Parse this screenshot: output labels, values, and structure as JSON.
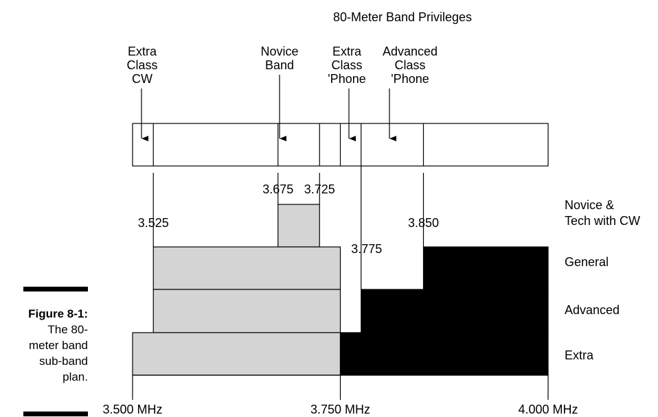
{
  "title": "80-Meter Band Privileges",
  "figure": {
    "label": "Figure 8-1:",
    "caption_lines": [
      "The 80-",
      "meter band",
      "sub-band",
      "plan."
    ]
  },
  "top_labels": [
    {
      "id": "extra-cw",
      "lines": [
        "Extra",
        "Class",
        "CW"
      ]
    },
    {
      "id": "novice-band",
      "lines": [
        "Novice",
        "Band"
      ]
    },
    {
      "id": "extra-phone",
      "lines": [
        "Extra",
        "Class",
        "'Phone"
      ]
    },
    {
      "id": "advanced-phone",
      "lines": [
        "Advanced",
        "Class",
        "'Phone"
      ]
    }
  ],
  "band_strip": {
    "divisions_mhz": [
      3.525,
      3.675,
      3.725,
      3.75,
      3.775,
      3.85
    ],
    "arrow_targets_mhz": [
      3.5125,
      3.7,
      3.7625,
      3.8125
    ]
  },
  "frequency_markers": [
    {
      "mhz": 3.525,
      "label": "3.525"
    },
    {
      "mhz": 3.675,
      "label": "3.675"
    },
    {
      "mhz": 3.725,
      "label": "3.725"
    },
    {
      "mhz": 3.775,
      "label": "3.775"
    },
    {
      "mhz": 3.85,
      "label": "3.850"
    }
  ],
  "axis": {
    "min_mhz": 3.5,
    "max_mhz": 4.0,
    "tick_labels": [
      {
        "mhz": 3.5,
        "label": "3.500 MHz"
      },
      {
        "mhz": 3.75,
        "label": "3.750 MHz"
      },
      {
        "mhz": 4.0,
        "label": "4.000 MHz"
      }
    ]
  },
  "legend": {
    "cw_color": "#d4d4d4",
    "phone_color": "#000000"
  },
  "privileges": [
    {
      "class_lines": [
        "Novice &",
        "Tech with CW"
      ],
      "segments": [
        {
          "start": 3.675,
          "end": 3.725,
          "mode": "cw"
        }
      ]
    },
    {
      "class_lines": [
        "General"
      ],
      "segments": [
        {
          "start": 3.525,
          "end": 3.75,
          "mode": "cw"
        },
        {
          "start": 3.85,
          "end": 4.0,
          "mode": "phone"
        }
      ]
    },
    {
      "class_lines": [
        "Advanced"
      ],
      "segments": [
        {
          "start": 3.525,
          "end": 3.75,
          "mode": "cw"
        },
        {
          "start": 3.775,
          "end": 4.0,
          "mode": "phone"
        }
      ]
    },
    {
      "class_lines": [
        "Extra"
      ],
      "segments": [
        {
          "start": 3.5,
          "end": 3.75,
          "mode": "cw"
        },
        {
          "start": 3.75,
          "end": 4.0,
          "mode": "phone"
        }
      ]
    }
  ]
}
